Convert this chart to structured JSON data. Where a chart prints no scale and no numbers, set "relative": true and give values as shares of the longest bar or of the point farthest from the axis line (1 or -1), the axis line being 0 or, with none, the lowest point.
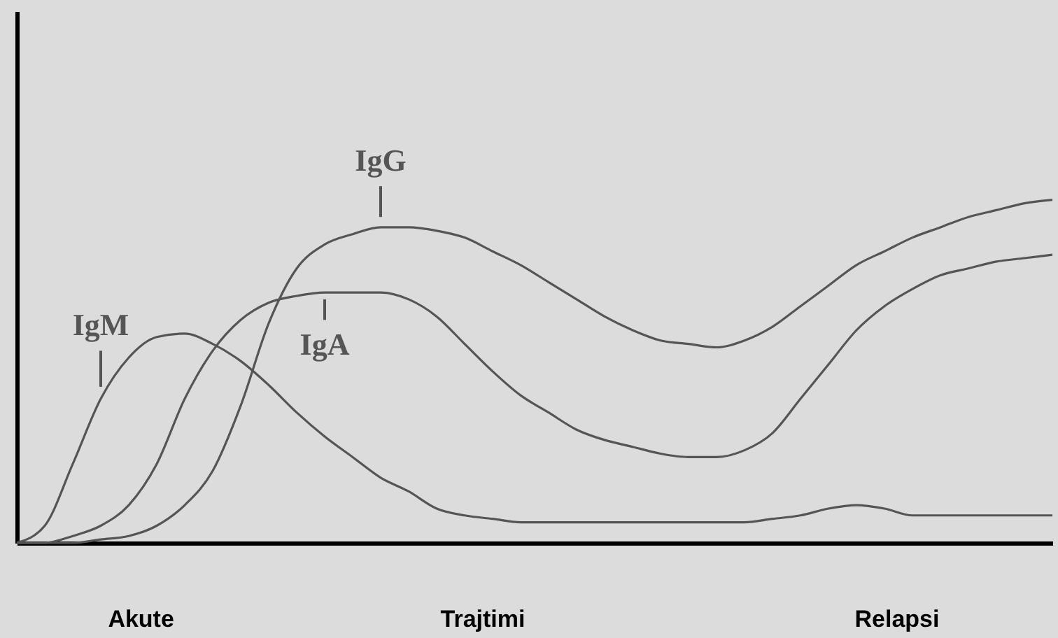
{
  "chart_data": {
    "type": "line",
    "relative": true,
    "marker": "none",
    "line_style": "solid",
    "categories": [
      null,
      null,
      null,
      null,
      null,
      null,
      null,
      null,
      null,
      null,
      null,
      null,
      null,
      null,
      null,
      null,
      null,
      null,
      null,
      null,
      null,
      null,
      null,
      null,
      null,
      null,
      null,
      null,
      null,
      null,
      null,
      null,
      null,
      null,
      null,
      null,
      null,
      null
    ],
    "series": [
      {
        "name": "IgM",
        "color": "#555555",
        "values": [
          0,
          0.05,
          0.23,
          0.42,
          0.54,
          0.6,
          0.61,
          0.58,
          0.53,
          0.46,
          0.38,
          0.31,
          0.25,
          0.19,
          0.15,
          0.1,
          0.08,
          0.07,
          0.06,
          0.06,
          0.06,
          0.06,
          0.06,
          0.06,
          0.06,
          0.06,
          0.06,
          0.07,
          0.08,
          0.1,
          0.11,
          0.1,
          0.08,
          0.08,
          0.08,
          0.08,
          0.08,
          0.08
        ]
      },
      {
        "name": "IgG",
        "color": "#555555",
        "values": [
          0,
          0,
          0,
          0.01,
          0.02,
          0.05,
          0.11,
          0.21,
          0.4,
          0.64,
          0.8,
          0.87,
          0.9,
          0.92,
          0.92,
          0.91,
          0.89,
          0.85,
          0.81,
          0.76,
          0.71,
          0.66,
          0.62,
          0.59,
          0.58,
          0.57,
          0.59,
          0.63,
          0.69,
          0.75,
          0.81,
          0.85,
          0.89,
          0.92,
          0.95,
          0.97,
          0.99,
          1
        ]
      },
      {
        "name": "IgA",
        "color": "#555555",
        "values": [
          0,
          0,
          0.02,
          0.05,
          0.11,
          0.23,
          0.42,
          0.56,
          0.65,
          0.7,
          0.72,
          0.73,
          0.73,
          0.73,
          0.71,
          0.66,
          0.58,
          0.5,
          0.43,
          0.38,
          0.33,
          0.3,
          0.28,
          0.26,
          0.25,
          0.25,
          0.27,
          0.32,
          0.42,
          0.52,
          0.62,
          0.69,
          0.74,
          0.78,
          0.8,
          0.82,
          0.83,
          0.84
        ]
      }
    ],
    "annotations": [
      "Akute",
      "Trajtimi",
      "Relapsi"
    ]
  }
}
